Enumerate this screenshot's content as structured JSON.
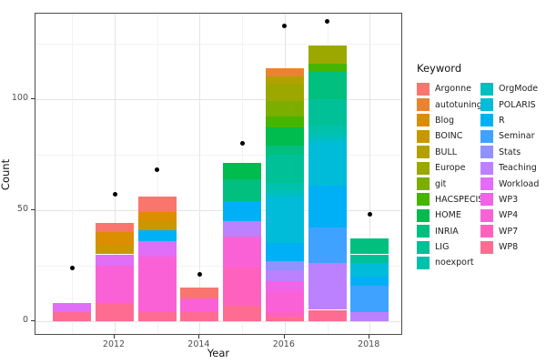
{
  "chart_data": {
    "type": "bar",
    "stacked": true,
    "title": "",
    "xlabel": "Year",
    "ylabel": "Count",
    "legend_title": "Keyword",
    "legend_position": "right",
    "x_years": [
      2011,
      2012,
      2013,
      2014,
      2015,
      2016,
      2017,
      2018
    ],
    "x_tick_years": [
      2012,
      2014,
      2016,
      2018
    ],
    "x_tick_labels": [
      "2012",
      "2014",
      "2016",
      "2018"
    ],
    "y_tick_values": [
      0,
      50,
      100
    ],
    "y_tick_labels": [
      "0",
      "50",
      "100"
    ],
    "y_major_gridlines": [
      0,
      50,
      100
    ],
    "y_minor_gridlines": [
      25,
      75,
      125
    ],
    "x_major_gridline_years": [
      2012,
      2014,
      2016,
      2018
    ],
    "x_minor_gridline_years": [
      2011,
      2013,
      2015,
      2017
    ],
    "ylim": [
      -7,
      139
    ],
    "grid": true,
    "keywords": [
      "Argonne",
      "autotuning",
      "Blog",
      "BOINC",
      "BULL",
      "Europe",
      "git",
      "HACSPECIS",
      "HOME",
      "INRIA",
      "LIG",
      "noexport",
      "OrgMode",
      "POLARIS",
      "R",
      "Seminar",
      "Stats",
      "Teaching",
      "Workload",
      "WP3",
      "WP4",
      "WP7",
      "WP8"
    ],
    "keyword_colors": {
      "Argonne": "#F8766D",
      "autotuning": "#EA8331",
      "Blog": "#DB8E00",
      "BOINC": "#C99800",
      "BULL": "#B2A100",
      "Europe": "#9CA700",
      "git": "#7CAE00",
      "HACSPECIS": "#45B500",
      "HOME": "#00BB4E",
      "INRIA": "#00BF7F",
      "LIG": "#00C098",
      "noexport": "#00C1AB",
      "OrgMode": "#00C0BF",
      "POLARIS": "#00BCD8",
      "R": "#00B0F6",
      "Seminar": "#3FA2FF",
      "Stats": "#9092FF",
      "Teaching": "#BC81FF",
      "Workload": "#E06EF6",
      "WP3": "#F164E8",
      "WP4": "#FB61D7",
      "WP7": "#FF62BE",
      "WP8": "#FF6C92"
    },
    "bars": [
      {
        "year": 2011,
        "total": 8,
        "segments": [
          {
            "keyword": "WP8",
            "value": 4
          },
          {
            "keyword": "Workload",
            "value": 4
          }
        ]
      },
      {
        "year": 2012,
        "total": 44,
        "segments": [
          {
            "keyword": "WP8",
            "value": 8
          },
          {
            "keyword": "WP4",
            "value": 17
          },
          {
            "keyword": "Workload",
            "value": 5
          },
          {
            "keyword": "BOINC",
            "value": 4
          },
          {
            "keyword": "Blog",
            "value": 6
          },
          {
            "keyword": "Argonne",
            "value": 4
          }
        ]
      },
      {
        "year": 2013,
        "total": 56,
        "segments": [
          {
            "keyword": "WP8",
            "value": 4
          },
          {
            "keyword": "WP4",
            "value": 25
          },
          {
            "keyword": "Workload",
            "value": 7
          },
          {
            "keyword": "R",
            "value": 5
          },
          {
            "keyword": "BOINC",
            "value": 4
          },
          {
            "keyword": "Blog",
            "value": 4
          },
          {
            "keyword": "Argonne",
            "value": 7
          }
        ]
      },
      {
        "year": 2014,
        "total": 15,
        "segments": [
          {
            "keyword": "WP8",
            "value": 4
          },
          {
            "keyword": "WP4",
            "value": 6
          },
          {
            "keyword": "Argonne",
            "value": 5
          }
        ]
      },
      {
        "year": 2015,
        "total": 71,
        "segments": [
          {
            "keyword": "WP8",
            "value": 7
          },
          {
            "keyword": "WP7",
            "value": 17
          },
          {
            "keyword": "WP4",
            "value": 14
          },
          {
            "keyword": "Teaching",
            "value": 7
          },
          {
            "keyword": "R",
            "value": 9
          },
          {
            "keyword": "INRIA",
            "value": 10
          },
          {
            "keyword": "HOME",
            "value": 7
          }
        ]
      },
      {
        "year": 2016,
        "total": 114,
        "segments": [
          {
            "keyword": "WP8",
            "value": 2
          },
          {
            "keyword": "WP7",
            "value": 2
          },
          {
            "keyword": "WP4",
            "value": 9
          },
          {
            "keyword": "WP3",
            "value": 5
          },
          {
            "keyword": "Teaching",
            "value": 5
          },
          {
            "keyword": "Stats",
            "value": 4
          },
          {
            "keyword": "R",
            "value": 8
          },
          {
            "keyword": "POLARIS",
            "value": 21
          },
          {
            "keyword": "OrgMode",
            "value": 3
          },
          {
            "keyword": "noexport",
            "value": 3
          },
          {
            "keyword": "LIG",
            "value": 13
          },
          {
            "keyword": "INRIA",
            "value": 4
          },
          {
            "keyword": "HOME",
            "value": 8
          },
          {
            "keyword": "HACSPECIS",
            "value": 5
          },
          {
            "keyword": "git",
            "value": 7
          },
          {
            "keyword": "Europe",
            "value": 8
          },
          {
            "keyword": "BULL",
            "value": 3
          },
          {
            "keyword": "autotuning",
            "value": 4
          }
        ]
      },
      {
        "year": 2017,
        "total": 124,
        "segments": [
          {
            "keyword": "WP8",
            "value": 5
          },
          {
            "keyword": "Teaching",
            "value": 21
          },
          {
            "keyword": "Seminar",
            "value": 16
          },
          {
            "keyword": "R",
            "value": 19
          },
          {
            "keyword": "POLARIS",
            "value": 20
          },
          {
            "keyword": "OrgMode",
            "value": 3
          },
          {
            "keyword": "noexport",
            "value": 4
          },
          {
            "keyword": "LIG",
            "value": 12
          },
          {
            "keyword": "INRIA",
            "value": 12
          },
          {
            "keyword": "HACSPECIS",
            "value": 4
          },
          {
            "keyword": "Europe",
            "value": 8
          }
        ]
      },
      {
        "year": 2018,
        "total": 37,
        "segments": [
          {
            "keyword": "Teaching",
            "value": 4
          },
          {
            "keyword": "Seminar",
            "value": 12
          },
          {
            "keyword": "R",
            "value": 4
          },
          {
            "keyword": "POLARIS",
            "value": 6
          },
          {
            "keyword": "LIG",
            "value": 4
          },
          {
            "keyword": "INRIA",
            "value": 7
          }
        ]
      }
    ],
    "points": [
      {
        "year": 2011,
        "count": 24
      },
      {
        "year": 2012,
        "count": 57
      },
      {
        "year": 2013,
        "count": 68
      },
      {
        "year": 2014,
        "count": 21
      },
      {
        "year": 2015,
        "count": 80
      },
      {
        "year": 2016,
        "count": 133
      },
      {
        "year": 2017,
        "count": 135
      },
      {
        "year": 2018,
        "count": 48
      }
    ],
    "point_color": "#000000"
  },
  "axes": {
    "x_title": "Year",
    "y_title": "Count"
  },
  "legend": {
    "title": "Keyword",
    "column_split": 12
  }
}
